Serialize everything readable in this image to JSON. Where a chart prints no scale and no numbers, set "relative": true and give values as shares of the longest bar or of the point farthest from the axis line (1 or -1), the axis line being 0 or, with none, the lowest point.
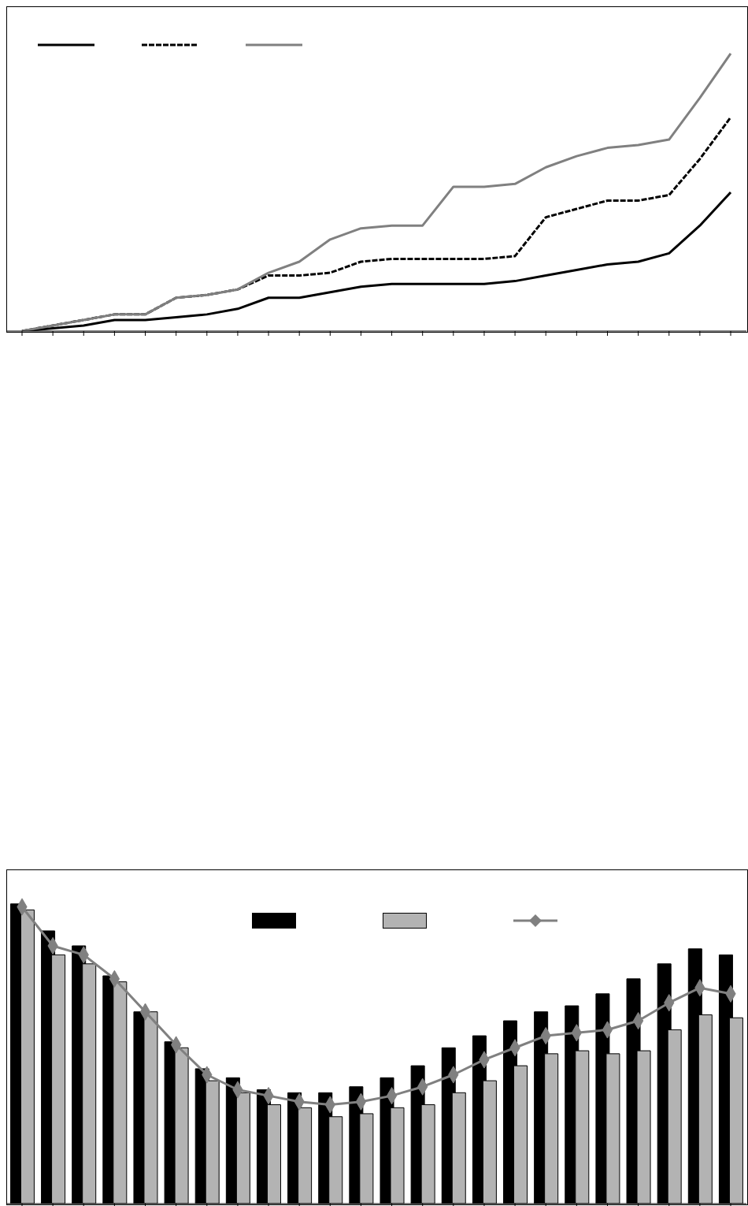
{
  "chart_data": [
    {
      "type": "line",
      "relative": true,
      "categories": [
        null,
        null,
        null,
        null,
        null,
        null,
        null,
        null,
        null,
        null,
        null,
        null,
        null,
        null,
        null,
        null,
        null,
        null,
        null,
        null,
        null,
        null,
        null,
        null
      ],
      "marker": "none",
      "grid": false,
      "series": [
        {
          "color": "#000000",
          "values": [
            0,
            0.01,
            0.02,
            0.04,
            0.04,
            0.05,
            0.06,
            0.08,
            0.12,
            0.12,
            0.14,
            0.16,
            0.17,
            0.17,
            0.17,
            0.17,
            0.18,
            0.2,
            0.22,
            0.24,
            0.25,
            0.28,
            0.38,
            0.5
          ]
        },
        {
          "color": "#000000",
          "line_style": "dashed",
          "values": [
            0,
            0.02,
            0.04,
            0.06,
            0.06,
            0.12,
            0.13,
            0.15,
            0.2,
            0.2,
            0.21,
            0.25,
            0.26,
            0.26,
            0.26,
            0.26,
            0.27,
            0.41,
            0.44,
            0.47,
            0.47,
            0.49,
            0.62,
            0.77
          ]
        },
        {
          "color": "#808080",
          "values": [
            0,
            0.02,
            0.04,
            0.06,
            0.06,
            0.12,
            0.13,
            0.15,
            0.21,
            0.25,
            0.33,
            0.37,
            0.38,
            0.38,
            0.52,
            0.52,
            0.53,
            0.59,
            0.63,
            0.66,
            0.67,
            0.69,
            0.84,
            1
          ]
        }
      ]
    },
    {
      "type": "bar",
      "relative": true,
      "categories": [
        null,
        null,
        null,
        null,
        null,
        null,
        null,
        null,
        null,
        null,
        null,
        null,
        null,
        null,
        null,
        null,
        null,
        null,
        null,
        null,
        null,
        null,
        null,
        null
      ],
      "grid": false,
      "series": [
        {
          "color": "#000000",
          "values": [
            1,
            0.91,
            0.86,
            0.76,
            0.64,
            0.54,
            0.45,
            0.42,
            0.38,
            0.37,
            0.37,
            0.39,
            0.42,
            0.46,
            0.52,
            0.56,
            0.61,
            0.64,
            0.66,
            0.7,
            0.75,
            0.8,
            0.85,
            0.83
          ]
        },
        {
          "color": "#b3b3b3",
          "values": [
            0.98,
            0.83,
            0.8,
            0.74,
            0.64,
            0.52,
            0.41,
            0.37,
            0.33,
            0.32,
            0.29,
            0.3,
            0.32,
            0.33,
            0.37,
            0.41,
            0.46,
            0.5,
            0.51,
            0.5,
            0.51,
            0.58,
            0.63,
            0.62
          ]
        },
        {
          "type": "line",
          "color": "#808080",
          "marker": "diamond",
          "values": [
            0.99,
            0.86,
            0.83,
            0.75,
            0.64,
            0.53,
            0.43,
            0.38,
            0.36,
            0.34,
            0.33,
            0.34,
            0.36,
            0.39,
            0.43,
            0.48,
            0.52,
            0.56,
            0.57,
            0.58,
            0.61,
            0.67,
            0.72,
            0.7
          ]
        }
      ]
    }
  ]
}
